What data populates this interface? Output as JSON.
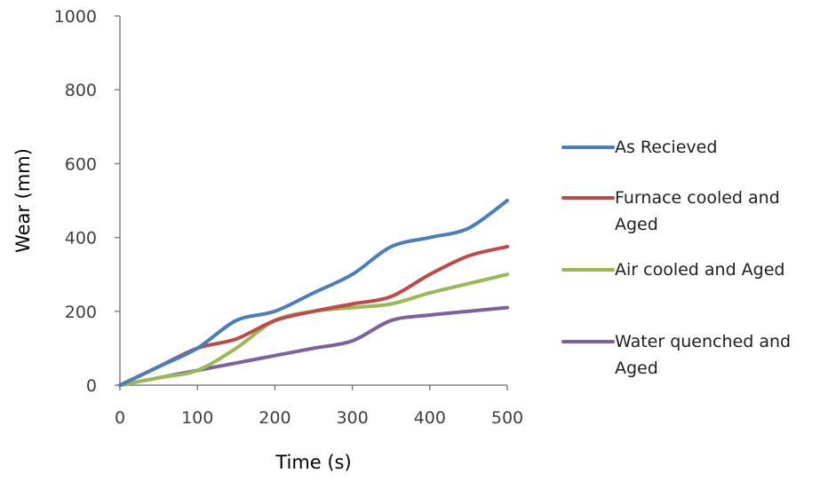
{
  "chart_data": {
    "type": "line",
    "title": "",
    "xlabel": "Time (s)",
    "ylabel": "Wear (mm)",
    "xlim": [
      0,
      500
    ],
    "ylim": [
      0,
      1000
    ],
    "xticks": [
      0,
      100,
      200,
      300,
      400,
      500
    ],
    "yticks": [
      0,
      200,
      400,
      600,
      800,
      1000
    ],
    "grid": false,
    "legend_position": "right",
    "x": [
      0,
      50,
      100,
      150,
      200,
      250,
      300,
      350,
      400,
      450,
      500
    ],
    "series": [
      {
        "name": "As Recieved",
        "legend_lines": [
          "As Recieved"
        ],
        "color": "#4a7ebb",
        "values": [
          0,
          50,
          100,
          175,
          200,
          250,
          300,
          375,
          400,
          425,
          500
        ]
      },
      {
        "name": "Furnace cooled and Aged",
        "legend_lines": [
          "Furnace cooled and",
          "Aged"
        ],
        "color": "#be4b48",
        "values": [
          0,
          50,
          100,
          125,
          175,
          200,
          220,
          240,
          300,
          350,
          375
        ]
      },
      {
        "name": "Air cooled and Aged",
        "legend_lines": [
          "Air cooled and Aged"
        ],
        "color": "#98b954",
        "values": [
          0,
          20,
          40,
          100,
          175,
          200,
          210,
          220,
          250,
          275,
          300
        ]
      },
      {
        "name": "Water quenched and Aged",
        "legend_lines": [
          "Water quenched and",
          "Aged"
        ],
        "color": "#7d60a0",
        "values": [
          0,
          20,
          40,
          60,
          80,
          100,
          120,
          175,
          190,
          200,
          210
        ]
      }
    ]
  }
}
